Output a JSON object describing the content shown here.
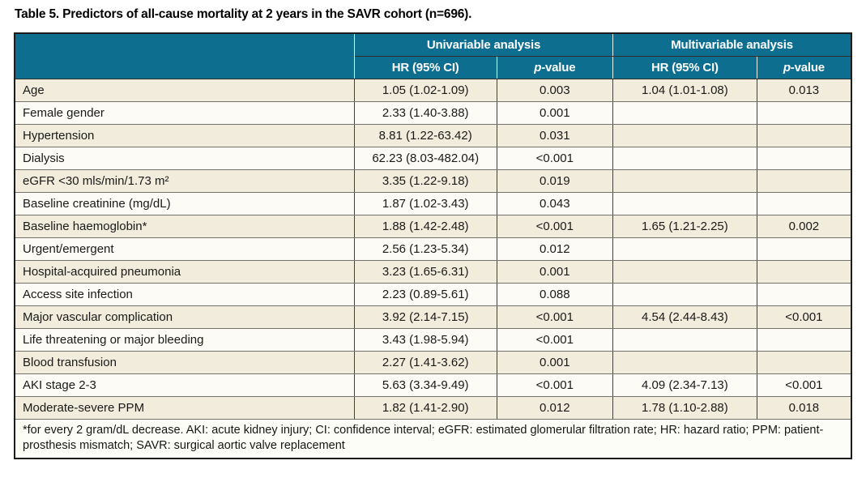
{
  "title": "Table 5. Predictors of all-cause mortality at 2 years in the SAVR cohort (n=696).",
  "colors": {
    "header_bg": "#0d6e8f",
    "header_text": "#ffffff",
    "row_bg": "#fcfbf5",
    "row_alt_bg": "#f1ecdb",
    "footnote_bg": "#fdfdf8",
    "border_outer": "#1c1c1c"
  },
  "table": {
    "group_headers": [
      {
        "label": "Univariable analysis"
      },
      {
        "label": "Multivariable analysis"
      }
    ],
    "sub_headers": [
      {
        "text": "HR (95% CI)"
      },
      {
        "italic": "p",
        "text": "-value"
      },
      {
        "text": "HR (95% CI)"
      },
      {
        "italic": "p",
        "text": "-value"
      }
    ],
    "rows": [
      {
        "label": "Age",
        "uni_hr": "1.05 (1.02-1.09)",
        "uni_p": "0.003",
        "multi_hr": "1.04 (1.01-1.08)",
        "multi_p": "0.013"
      },
      {
        "label": "Female gender",
        "uni_hr": "2.33 (1.40-3.88)",
        "uni_p": "0.001",
        "multi_hr": "",
        "multi_p": ""
      },
      {
        "label": "Hypertension",
        "uni_hr": "8.81 (1.22-63.42)",
        "uni_p": "0.031",
        "multi_hr": "",
        "multi_p": ""
      },
      {
        "label": "Dialysis",
        "uni_hr": "62.23 (8.03-482.04)",
        "uni_p": "<0.001",
        "multi_hr": "",
        "multi_p": ""
      },
      {
        "label": "eGFR <30 mls/min/1.73 m²",
        "uni_hr": "3.35 (1.22-9.18)",
        "uni_p": "0.019",
        "multi_hr": "",
        "multi_p": ""
      },
      {
        "label": "Baseline creatinine (mg/dL)",
        "uni_hr": "1.87 (1.02-3.43)",
        "uni_p": "0.043",
        "multi_hr": "",
        "multi_p": ""
      },
      {
        "label": "Baseline haemoglobin*",
        "uni_hr": "1.88 (1.42-2.48)",
        "uni_p": "<0.001",
        "multi_hr": "1.65 (1.21-2.25)",
        "multi_p": "0.002"
      },
      {
        "label": "Urgent/emergent",
        "uni_hr": "2.56 (1.23-5.34)",
        "uni_p": "0.012",
        "multi_hr": "",
        "multi_p": ""
      },
      {
        "label": "Hospital-acquired pneumonia",
        "uni_hr": "3.23 (1.65-6.31)",
        "uni_p": "0.001",
        "multi_hr": "",
        "multi_p": ""
      },
      {
        "label": "Access site infection",
        "uni_hr": "2.23 (0.89-5.61)",
        "uni_p": "0.088",
        "multi_hr": "",
        "multi_p": ""
      },
      {
        "label": "Major vascular complication",
        "uni_hr": "3.92 (2.14-7.15)",
        "uni_p": "<0.001",
        "multi_hr": "4.54 (2.44-8.43)",
        "multi_p": "<0.001"
      },
      {
        "label": "Life threatening or major bleeding",
        "uni_hr": "3.43 (1.98-5.94)",
        "uni_p": "<0.001",
        "multi_hr": "",
        "multi_p": ""
      },
      {
        "label": "Blood transfusion",
        "uni_hr": "2.27 (1.41-3.62)",
        "uni_p": "0.001",
        "multi_hr": "",
        "multi_p": ""
      },
      {
        "label": "AKI stage 2-3",
        "uni_hr": "5.63 (3.34-9.49)",
        "uni_p": "<0.001",
        "multi_hr": "4.09 (2.34-7.13)",
        "multi_p": "<0.001"
      },
      {
        "label": "Moderate-severe PPM",
        "uni_hr": "1.82 (1.41-2.90)",
        "uni_p": "0.012",
        "multi_hr": "1.78 (1.10-2.88)",
        "multi_p": "0.018"
      }
    ]
  },
  "footnote": "*for every 2 gram/dL decrease. AKI: acute kidney injury; CI: confidence interval; eGFR: estimated glomerular filtration rate; HR: hazard ratio; PPM: patient-prosthesis mismatch; SAVR: surgical aortic valve replacement"
}
